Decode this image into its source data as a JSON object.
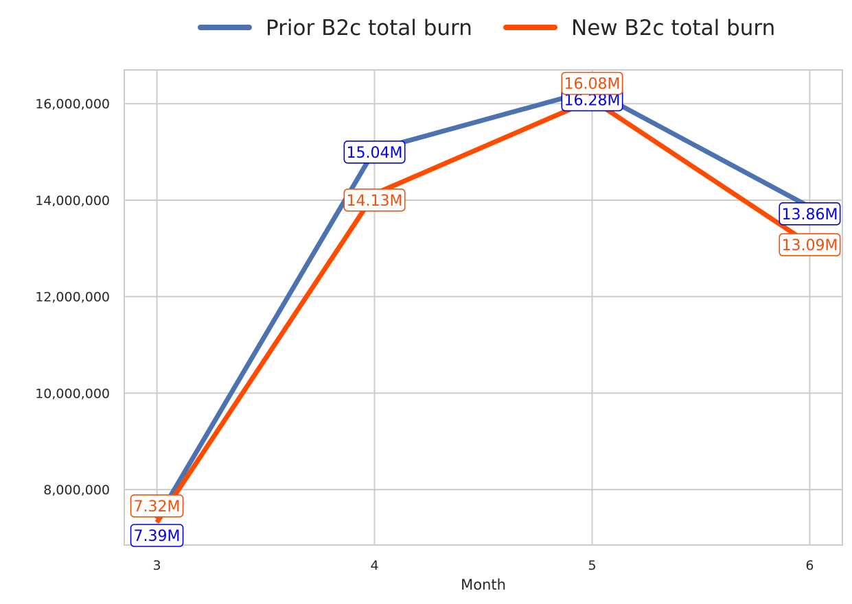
{
  "chart_data": {
    "type": "line",
    "title": "",
    "xlabel": "Month",
    "ylabel": "",
    "x": [
      3,
      4,
      5,
      6
    ],
    "x_tick_labels": [
      "3",
      "4",
      "5",
      "6"
    ],
    "xlim": [
      2.85,
      6.15
    ],
    "ylim": [
      6850000,
      16700000
    ],
    "y_ticks": [
      8000000,
      10000000,
      12000000,
      14000000,
      16000000
    ],
    "y_tick_labels": [
      "8,000,000",
      "10,000,000",
      "12,000,000",
      "14,000,000",
      "16,000,000"
    ],
    "grid": true,
    "legend_position": "top-center",
    "series": [
      {
        "name": "Prior B2c total burn",
        "color": "#4c72b0",
        "label_color": "#0000ee",
        "values": [
          7390000,
          15040000,
          16280000,
          13860000
        ],
        "labels": [
          "7.39M",
          "15.04M",
          "16.28M",
          "13.86M"
        ]
      },
      {
        "name": "New B2c total burn",
        "color": "#ff4b00",
        "label_color": "#f0500a",
        "values": [
          7320000,
          14130000,
          16080000,
          13090000
        ],
        "labels": [
          "7.32M",
          "14.13M",
          "16.08M",
          "13.09M"
        ]
      }
    ]
  }
}
